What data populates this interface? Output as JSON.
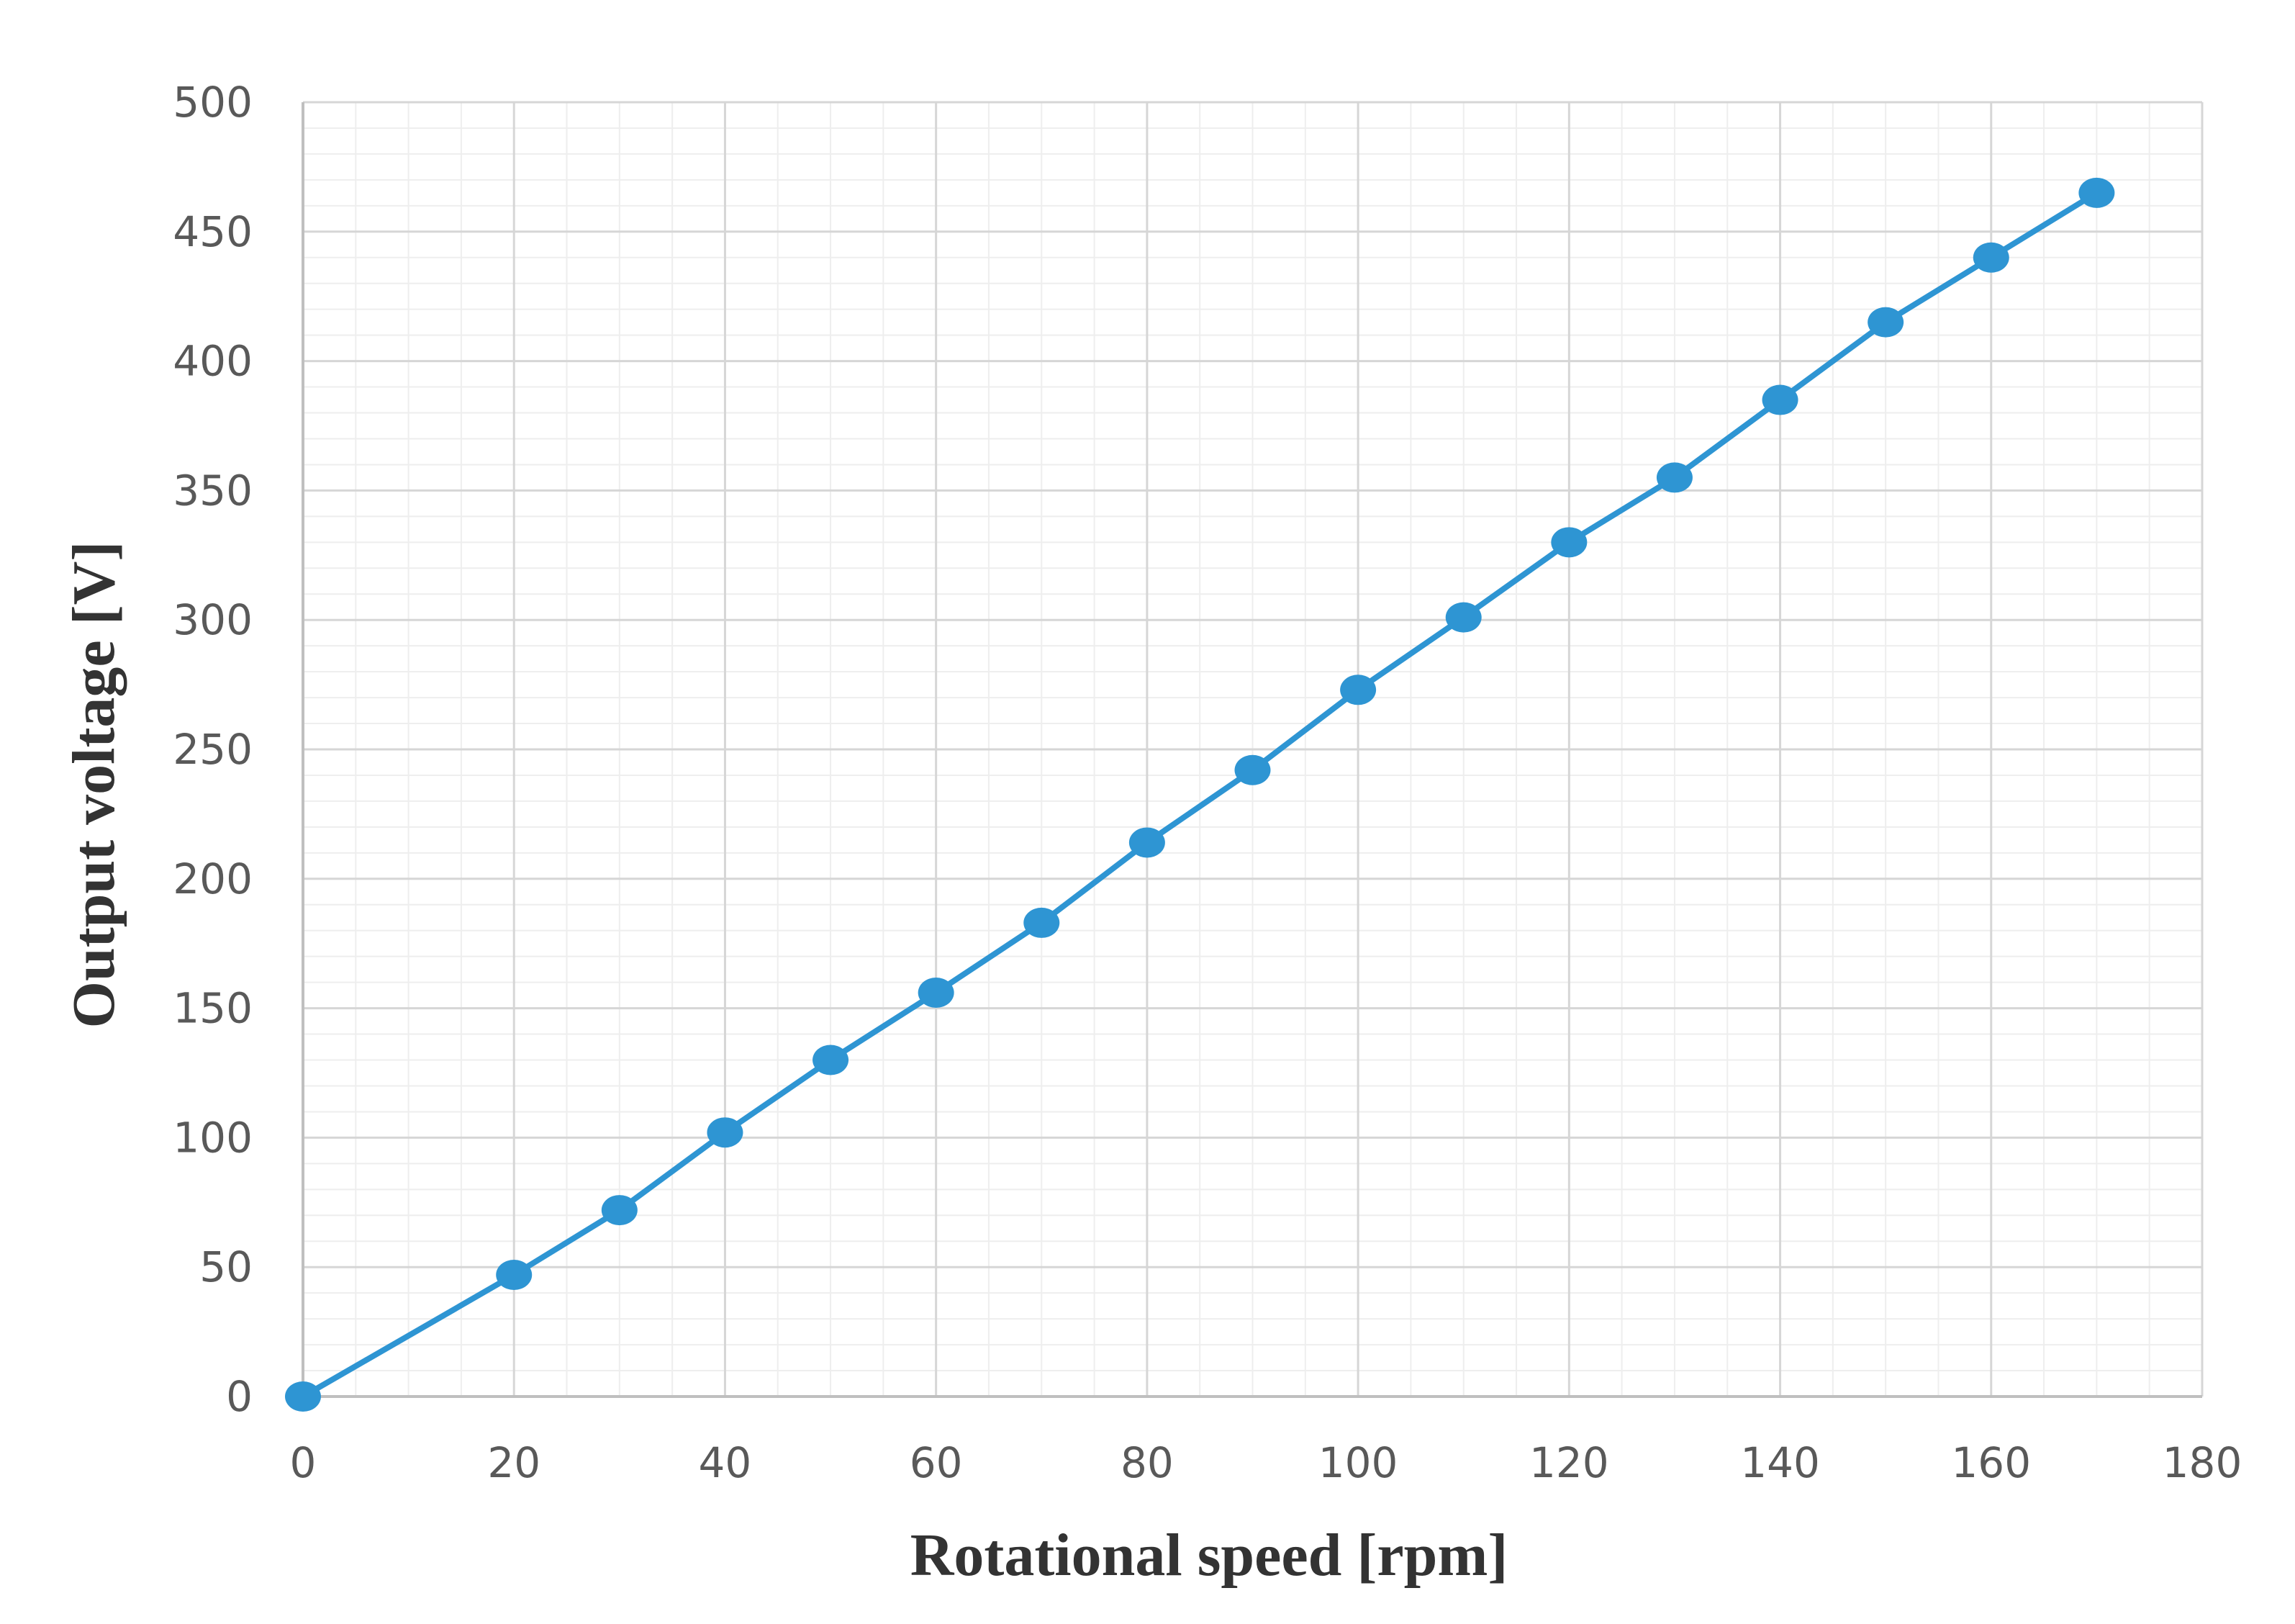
{
  "chart_data": {
    "type": "line",
    "title": "",
    "xlabel": "Rotational speed [rpm]",
    "ylabel": "Output voltage [V]",
    "xlim": [
      0,
      180
    ],
    "ylim": [
      0,
      500
    ],
    "x_ticks": [
      0,
      20,
      40,
      60,
      80,
      100,
      120,
      140,
      160,
      180
    ],
    "y_ticks": [
      0,
      50,
      100,
      150,
      200,
      250,
      300,
      350,
      400,
      450,
      500
    ],
    "grid": true,
    "legend": "none",
    "series": [
      {
        "color": "#2e95d3",
        "marker": "circle",
        "points": [
          {
            "x": 0,
            "y": 0
          },
          {
            "x": 20,
            "y": 47
          },
          {
            "x": 30,
            "y": 72
          },
          {
            "x": 40,
            "y": 102
          },
          {
            "x": 50,
            "y": 130
          },
          {
            "x": 60,
            "y": 156
          },
          {
            "x": 70,
            "y": 183
          },
          {
            "x": 80,
            "y": 214
          },
          {
            "x": 90,
            "y": 242
          },
          {
            "x": 100,
            "y": 273
          },
          {
            "x": 110,
            "y": 301
          },
          {
            "x": 120,
            "y": 330
          },
          {
            "x": 130,
            "y": 355
          },
          {
            "x": 140,
            "y": 385
          },
          {
            "x": 150,
            "y": 415
          },
          {
            "x": 160,
            "y": 440
          },
          {
            "x": 170,
            "y": 465
          }
        ]
      }
    ]
  }
}
